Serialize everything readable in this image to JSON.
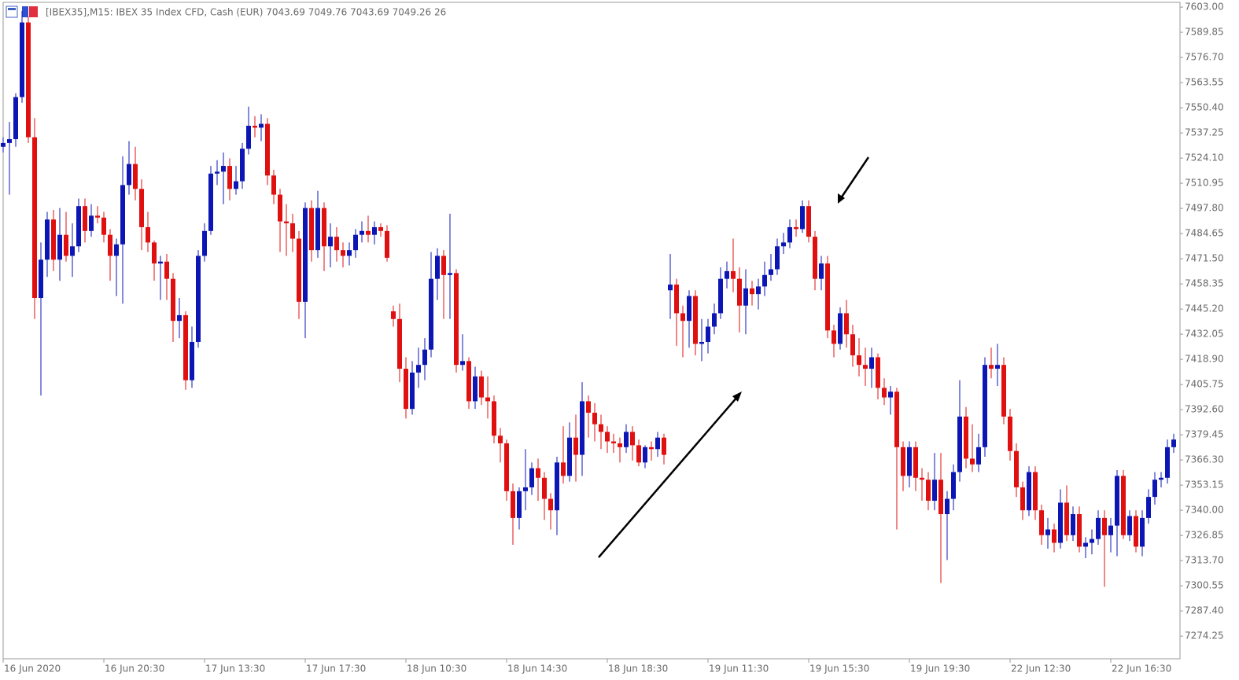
{
  "chart_data": {
    "type": "candlestick",
    "title": "[IBEX35],M15:  IBEX 35 Index CFD, Cash (EUR)  7043.69 7049.76 7043.69 7049.26  26",
    "up_color": "#0c16b4",
    "down_color": "#e01010",
    "categories": [
      "16 Jun 2020",
      null,
      null,
      null,
      null,
      null,
      null,
      null,
      null,
      null,
      null,
      null,
      null,
      null,
      null,
      null,
      "16 Jun 20:30",
      null,
      null,
      null,
      null,
      null,
      null,
      null,
      null,
      null,
      null,
      null,
      null,
      null,
      null,
      null,
      "17 Jun 13:30",
      null,
      null,
      null,
      null,
      null,
      null,
      null,
      null,
      null,
      null,
      null,
      null,
      null,
      null,
      null,
      "17 Jun 17:30",
      null,
      null,
      null,
      null,
      null,
      null,
      null,
      null,
      null,
      null,
      null,
      null,
      null,
      null,
      null,
      "18 Jun 10:30",
      null,
      null,
      null,
      null,
      null,
      null,
      null,
      null,
      null,
      null,
      null,
      null,
      null,
      null,
      null,
      "18 Jun 14:30",
      null,
      null,
      null,
      null,
      null,
      null,
      null,
      null,
      null,
      null,
      null,
      null,
      null,
      null,
      null,
      "18 Jun 18:30",
      null,
      null,
      null,
      null,
      null,
      null,
      null,
      null,
      null,
      null,
      null,
      null,
      null,
      null,
      null,
      "19 Jun 11:30",
      null,
      null,
      null,
      null,
      null,
      null,
      null,
      null,
      null,
      null,
      null,
      null,
      null,
      null,
      null,
      "19 Jun 15:30",
      null,
      null,
      null,
      null,
      null,
      null,
      null,
      null,
      null,
      null,
      null,
      null,
      null,
      null,
      null,
      "19 Jun 19:30",
      null,
      null,
      null,
      null,
      null,
      null,
      null,
      null,
      null,
      null,
      null,
      null,
      null,
      null,
      null,
      "22 Jun 12:30",
      null,
      null,
      null,
      null,
      null,
      null,
      null,
      null,
      null,
      null,
      null,
      null,
      null,
      null,
      null,
      "22 Jun 16:30",
      null,
      null,
      null,
      null,
      null,
      null,
      null,
      null,
      null,
      null
    ],
    "open": [
      7530,
      7532,
      7534,
      7556,
      7595,
      7535,
      7451,
      7471,
      7492,
      7471,
      7484,
      7473,
      7478,
      7499,
      7486,
      7494,
      7493,
      7484,
      7473,
      7479,
      7510,
      7521,
      7508,
      7488,
      7480,
      7469,
      7470,
      7461,
      7439,
      7442,
      7408,
      7428,
      7473,
      7486,
      7516,
      7517,
      7520,
      7508,
      7512,
      7529,
      7541,
      7540,
      7542,
      7515,
      7505,
      7491,
      7490,
      7482,
      7449,
      7498,
      7476,
      7498,
      7478,
      7483,
      7476,
      7473,
      7476,
      7484,
      7486,
      7484,
      7488,
      7486,
      7444,
      7440,
      7414,
      7393,
      7412,
      7416,
      7424,
      7461,
      7473,
      7463,
      7464,
      7416,
      7418,
      7397,
      7410,
      7399,
      7397,
      7379,
      7375,
      7350,
      7336,
      7350,
      7352,
      7362,
      7357,
      7346,
      7340,
      7365,
      7358,
      7378,
      7369,
      7397,
      7391,
      7385,
      7381,
      7376,
      7375,
      7373,
      7381,
      7374,
      7365,
      7373,
      7372,
      7378,
      7455,
      7458,
      7443,
      7439,
      7452,
      7427,
      7428,
      7436,
      7443,
      7461,
      7465,
      7461,
      7447,
      7456,
      7453,
      7457,
      7463,
      7466,
      7478,
      7480,
      7488,
      7487,
      7499,
      7483,
      7461,
      7469,
      7434,
      7427,
      7443,
      7432,
      7421,
      7416,
      7414,
      7420,
      7404,
      7399,
      7402,
      7373,
      7358,
      7373,
      7357,
      7356,
      7345,
      7356,
      7338,
      7346,
      7360,
      7389,
      7367,
      7364,
      7373,
      7416,
      7414,
      7416,
      7389,
      7371,
      7352,
      7340,
      7360,
      7340,
      7327,
      7330,
      7323,
      7344,
      7327,
      7338,
      7321,
      7323,
      7325,
      7336,
      7327,
      7332,
      7358,
      7327,
      7337,
      7321,
      7336,
      7347,
      7356,
      7357,
      7373
    ],
    "high": [
      7535,
      7543,
      7558,
      7601,
      7598,
      7545,
      7480,
      7496,
      7497,
      7498,
      7496,
      7490,
      7503,
      7503,
      7500,
      7499,
      7496,
      7487,
      7482,
      7525,
      7533,
      7530,
      7513,
      7496,
      7481,
      7473,
      7474,
      7464,
      7451,
      7444,
      7436,
      7476,
      7490,
      7520,
      7523,
      7527,
      7524,
      7520,
      7532,
      7551,
      7546,
      7547,
      7545,
      7518,
      7508,
      7500,
      7495,
      7486,
      7501,
      7502,
      7507,
      7501,
      7490,
      7488,
      7480,
      7480,
      7487,
      7491,
      7494,
      7491,
      7490,
      7489,
      7447,
      7448,
      7420,
      7418,
      7425,
      7430,
      7475,
      7477,
      7476,
      7495,
      7466,
      7432,
      7420,
      7415,
      7413,
      7410,
      7400,
      7383,
      7377,
      7354,
      7352,
      7372,
      7365,
      7367,
      7360,
      7349,
      7368,
      7384,
      7386,
      7390,
      7407,
      7400,
      7396,
      7390,
      7384,
      7380,
      7378,
      7385,
      7384,
      7377,
      7374,
      7376,
      7381,
      7380,
      7474,
      7461,
      7447,
      7455,
      7455,
      7440,
      7440,
      7448,
      7467,
      7470,
      7482,
      7467,
      7466,
      7460,
      7461,
      7470,
      7474,
      7482,
      7485,
      7492,
      7492,
      7502,
      7502,
      7486,
      7473,
      7473,
      7437,
      7446,
      7450,
      7437,
      7430,
      7425,
      7425,
      7422,
      7409,
      7405,
      7404,
      7376,
      7376,
      7376,
      7362,
      7360,
      7370,
      7370,
      7350,
      7364,
      7408,
      7394,
      7385,
      7380,
      7420,
      7425,
      7427,
      7420,
      7393,
      7375,
      7355,
      7363,
      7363,
      7343,
      7336,
      7333,
      7351,
      7353,
      7342,
      7342,
      7326,
      7330,
      7340,
      7340,
      7336,
      7361,
      7361,
      7340,
      7340,
      7340,
      7351,
      7360,
      7360,
      7377,
      7380
    ],
    "low": [
      7527,
      7505,
      7530,
      7553,
      7532,
      7440,
      7400,
      7462,
      7465,
      7460,
      7470,
      7462,
      7475,
      7480,
      7483,
      7490,
      7480,
      7460,
      7452,
      7448,
      7505,
      7502,
      7476,
      7475,
      7460,
      7450,
      7450,
      7428,
      7430,
      7403,
      7404,
      7425,
      7470,
      7484,
      7510,
      7500,
      7502,
      7505,
      7508,
      7526,
      7535,
      7533,
      7510,
      7500,
      7475,
      7473,
      7475,
      7440,
      7430,
      7470,
      7472,
      7465,
      7467,
      7470,
      7467,
      7468,
      7472,
      7480,
      7480,
      7479,
      7483,
      7470,
      7436,
      7407,
      7388,
      7390,
      7404,
      7408,
      7420,
      7450,
      7440,
      7440,
      7412,
      7413,
      7393,
      7393,
      7395,
      7388,
      7375,
      7365,
      7345,
      7322,
      7330,
      7340,
      7348,
      7345,
      7335,
      7330,
      7327,
      7354,
      7355,
      7355,
      7358,
      7378,
      7376,
      7372,
      7370,
      7370,
      7365,
      7370,
      7366,
      7363,
      7362,
      7366,
      7368,
      7364,
      7440,
      7426,
      7420,
      7425,
      7421,
      7418,
      7422,
      7432,
      7440,
      7456,
      7454,
      7433,
      7432,
      7447,
      7445,
      7452,
      7460,
      7463,
      7474,
      7477,
      7483,
      7485,
      7480,
      7455,
      7455,
      7430,
      7420,
      7424,
      7425,
      7415,
      7410,
      7405,
      7404,
      7398,
      7395,
      7390,
      7330,
      7350,
      7352,
      7350,
      7345,
      7340,
      7340,
      7302,
      7314,
      7340,
      7355,
      7362,
      7360,
      7360,
      7368,
      7409,
      7405,
      7385,
      7366,
      7347,
      7335,
      7337,
      7335,
      7322,
      7320,
      7318,
      7320,
      7324,
      7324,
      7318,
      7315,
      7317,
      7322,
      7300,
      7318,
      7316,
      7325,
      7324,
      7318,
      7316,
      7333,
      7343,
      7352,
      7354,
      7370
    ],
    "close": [
      7532,
      7534,
      7556,
      7595,
      7535,
      7451,
      7471,
      7492,
      7471,
      7484,
      7473,
      7478,
      7499,
      7486,
      7494,
      7493,
      7484,
      7473,
      7479,
      7510,
      7521,
      7508,
      7488,
      7480,
      7469,
      7470,
      7461,
      7439,
      7442,
      7408,
      7428,
      7473,
      7486,
      7516,
      7517,
      7520,
      7508,
      7512,
      7529,
      7541,
      7540,
      7542,
      7515,
      7505,
      7491,
      7490,
      7482,
      7449,
      7498,
      7476,
      7498,
      7478,
      7483,
      7476,
      7473,
      7476,
      7484,
      7486,
      7484,
      7488,
      7486,
      7472,
      7440,
      7414,
      7393,
      7412,
      7416,
      7424,
      7461,
      7473,
      7463,
      7464,
      7416,
      7418,
      7397,
      7410,
      7399,
      7397,
      7379,
      7375,
      7350,
      7336,
      7350,
      7352,
      7362,
      7357,
      7346,
      7340,
      7365,
      7358,
      7378,
      7369,
      7397,
      7391,
      7385,
      7381,
      7376,
      7375,
      7373,
      7381,
      7374,
      7365,
      7373,
      7372,
      7378,
      7369,
      7458,
      7443,
      7439,
      7452,
      7427,
      7428,
      7436,
      7443,
      7461,
      7465,
      7461,
      7447,
      7456,
      7453,
      7457,
      7463,
      7466,
      7478,
      7480,
      7488,
      7487,
      7499,
      7483,
      7461,
      7469,
      7434,
      7427,
      7443,
      7432,
      7421,
      7416,
      7414,
      7420,
      7404,
      7399,
      7402,
      7373,
      7358,
      7373,
      7357,
      7356,
      7345,
      7356,
      7338,
      7346,
      7360,
      7389,
      7367,
      7364,
      7373,
      7416,
      7414,
      7416,
      7389,
      7371,
      7352,
      7340,
      7360,
      7340,
      7327,
      7330,
      7323,
      7344,
      7327,
      7338,
      7321,
      7323,
      7325,
      7336,
      7327,
      7332,
      7358,
      7327,
      7337,
      7321,
      7336,
      7347,
      7356,
      7357,
      7373,
      7377
    ],
    "ylim": [
      7262.4,
      7605.5
    ],
    "yticks": [
      {
        "value": 7603.0,
        "label": "7603.00"
      },
      {
        "value": 7589.85,
        "label": "7589.85"
      },
      {
        "value": 7576.7,
        "label": "7576.70"
      },
      {
        "value": 7563.55,
        "label": "7563.55"
      },
      {
        "value": 7550.4,
        "label": "7550.40"
      },
      {
        "value": 7537.25,
        "label": "7537.25"
      },
      {
        "value": 7524.1,
        "label": "7524.10"
      },
      {
        "value": 7510.95,
        "label": "7510.95"
      },
      {
        "value": 7497.8,
        "label": "7497.80"
      },
      {
        "value": 7484.65,
        "label": "7484.65"
      },
      {
        "value": 7471.5,
        "label": "7471.50"
      },
      {
        "value": 7458.35,
        "label": "7458.35"
      },
      {
        "value": 7445.2,
        "label": "7445.20"
      },
      {
        "value": 7432.05,
        "label": "7432.05"
      },
      {
        "value": 7418.9,
        "label": "7418.90"
      },
      {
        "value": 7405.75,
        "label": "7405.75"
      },
      {
        "value": 7392.6,
        "label": "7392.60"
      },
      {
        "value": 7379.45,
        "label": "7379.45"
      },
      {
        "value": 7366.3,
        "label": "7366.30"
      },
      {
        "value": 7353.15,
        "label": "7353.15"
      },
      {
        "value": 7340.0,
        "label": "7340.00"
      },
      {
        "value": 7326.85,
        "label": "7326.85"
      },
      {
        "value": 7313.7,
        "label": "7313.70"
      },
      {
        "value": 7300.55,
        "label": "7300.55"
      },
      {
        "value": 7287.4,
        "label": "7287.40"
      },
      {
        "value": 7274.25,
        "label": "7274.25"
      }
    ]
  }
}
